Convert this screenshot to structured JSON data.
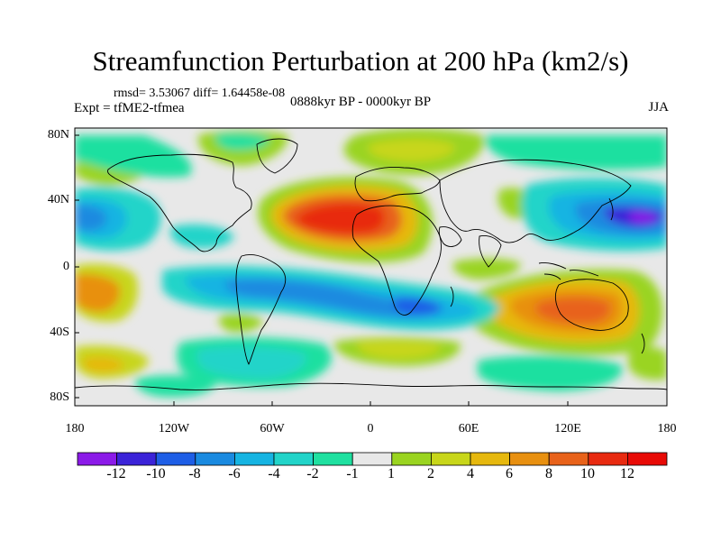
{
  "title": "Streamfunction Perturbation at 200 hPa (km2/s)",
  "stats": "rmsd= 3.53067 diff= 1.64458e-08",
  "experiment": "Expt = tfME2-tfmea",
  "period": "0888kyr BP - 0000kyr BP",
  "season": "JJA",
  "lat_ticks": [
    "80N",
    "40N",
    "0",
    "40S",
    "80S"
  ],
  "lon_ticks": [
    "180",
    "120W",
    "60W",
    "0",
    "60E",
    "120E",
    "180"
  ],
  "colorbar": {
    "labels": [
      "-12",
      "-10",
      "-8",
      "-6",
      "-4",
      "-2",
      "-1",
      "1",
      "2",
      "4",
      "6",
      "8",
      "10",
      "12"
    ],
    "colors": [
      "#8b1ae8",
      "#3b23d8",
      "#1e5ee6",
      "#1a8ae0",
      "#16b4e2",
      "#22d4c9",
      "#1fe0a0",
      "#e8e8e8",
      "#9ad420",
      "#c8d61a",
      "#e6b80e",
      "#e89010",
      "#e8621a",
      "#e82a10",
      "#e80a06"
    ]
  }
}
